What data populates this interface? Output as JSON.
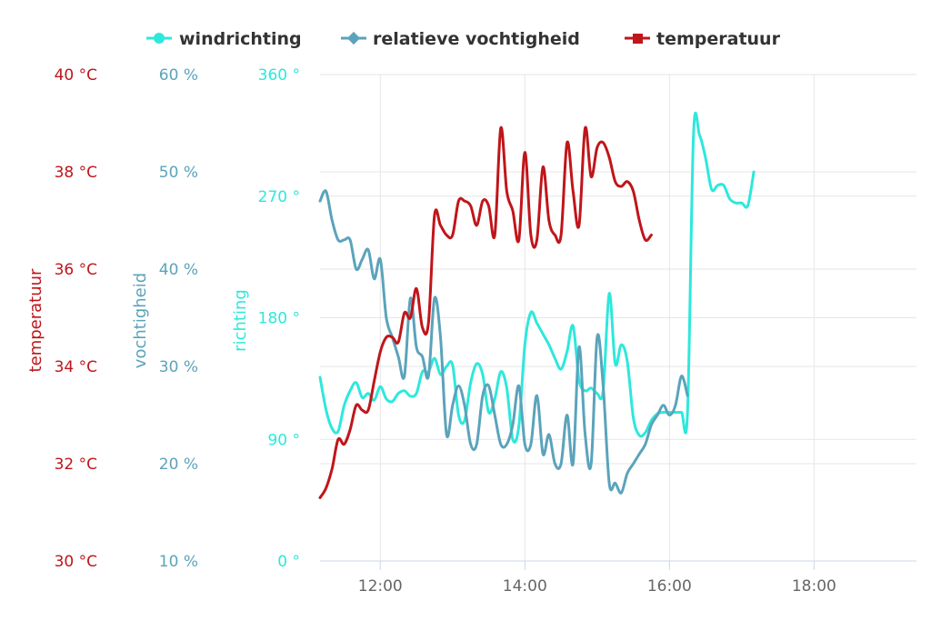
{
  "chart_data": {
    "type": "line",
    "title": "",
    "legend": {
      "placement": "top-center",
      "entries": [
        "windrichting",
        "relatieve vochtigheid",
        "temperatuur"
      ]
    },
    "x_axis": {
      "type": "time",
      "range": [
        "11:10",
        "19:25"
      ],
      "ticks": [
        "12:00",
        "14:00",
        "16:00",
        "18:00"
      ],
      "grid": true
    },
    "y_axes": [
      {
        "id": "temp",
        "title": "temperatuur",
        "color": "#c0151a",
        "range": [
          30,
          40
        ],
        "ticks": [
          "40 °C",
          "38 °C",
          "36 °C",
          "34 °C",
          "32 °C",
          "30 °C"
        ]
      },
      {
        "id": "hum",
        "title": "vochtigheid",
        "color": "#5ba3bb",
        "range": [
          10,
          60
        ],
        "ticks": [
          "60 %",
          "50 %",
          "40 %",
          "30 %",
          "20 %",
          "10 %"
        ]
      },
      {
        "id": "dir",
        "title": "richting",
        "color": "#2de8dc",
        "range": [
          0,
          360
        ],
        "ticks": [
          "360 °",
          "270 °",
          "180 °",
          "90 °",
          "0 °"
        ]
      }
    ],
    "series": [
      {
        "name": "windrichting",
        "axis": "dir",
        "color": "#2de8dc",
        "marker": "circle",
        "points": [
          [
            "11:10",
            136
          ],
          [
            "11:15",
            112
          ],
          [
            "11:20",
            98
          ],
          [
            "11:25",
            96
          ],
          [
            "11:30",
            115
          ],
          [
            "11:35",
            126
          ],
          [
            "11:40",
            132
          ],
          [
            "11:45",
            121
          ],
          [
            "11:50",
            124
          ],
          [
            "11:55",
            119
          ],
          [
            "12:00",
            129
          ],
          [
            "12:05",
            120
          ],
          [
            "12:10",
            118
          ],
          [
            "12:15",
            124
          ],
          [
            "12:20",
            126
          ],
          [
            "12:25",
            122
          ],
          [
            "12:30",
            124
          ],
          [
            "12:35",
            140
          ],
          [
            "12:40",
            140
          ],
          [
            "12:45",
            150
          ],
          [
            "12:50",
            138
          ],
          [
            "12:55",
            144
          ],
          [
            "13:00",
            145
          ],
          [
            "13:05",
            108
          ],
          [
            "13:10",
            104
          ],
          [
            "13:15",
            132
          ],
          [
            "13:20",
            146
          ],
          [
            "13:25",
            138
          ],
          [
            "13:30",
            110
          ],
          [
            "13:35",
            120
          ],
          [
            "13:40",
            140
          ],
          [
            "13:45",
            128
          ],
          [
            "13:50",
            90
          ],
          [
            "13:55",
            100
          ],
          [
            "14:00",
            160
          ],
          [
            "14:05",
            184
          ],
          [
            "14:10",
            176
          ],
          [
            "14:15",
            168
          ],
          [
            "14:20",
            160
          ],
          [
            "14:25",
            150
          ],
          [
            "14:30",
            142
          ],
          [
            "14:35",
            155
          ],
          [
            "14:40",
            174
          ],
          [
            "14:45",
            134
          ],
          [
            "14:50",
            126
          ],
          [
            "14:55",
            128
          ],
          [
            "15:00",
            124
          ],
          [
            "15:05",
            126
          ],
          [
            "15:10",
            198
          ],
          [
            "15:15",
            146
          ],
          [
            "15:20",
            160
          ],
          [
            "15:25",
            148
          ],
          [
            "15:30",
            106
          ],
          [
            "15:35",
            93
          ],
          [
            "15:40",
            95
          ],
          [
            "15:45",
            104
          ],
          [
            "15:50",
            109
          ],
          [
            "15:55",
            110
          ],
          [
            "16:00",
            110
          ],
          [
            "16:05",
            110
          ],
          [
            "16:10",
            110
          ],
          [
            "16:15",
            110
          ],
          [
            "16:20",
            316
          ],
          [
            "16:25",
            315
          ],
          [
            "16:30",
            298
          ],
          [
            "16:35",
            275
          ],
          [
            "16:40",
            278
          ],
          [
            "16:45",
            278
          ],
          [
            "16:50",
            268
          ],
          [
            "16:55",
            265
          ],
          [
            "17:00",
            265
          ],
          [
            "17:05",
            263
          ],
          [
            "17:10",
            288
          ]
        ]
      },
      {
        "name": "relatieve vochtigheid",
        "axis": "hum",
        "color": "#5ba3bb",
        "marker": "diamond",
        "points": [
          [
            "11:10",
            47
          ],
          [
            "11:15",
            48
          ],
          [
            "11:20",
            45
          ],
          [
            "11:25",
            43
          ],
          [
            "11:30",
            43
          ],
          [
            "11:35",
            43
          ],
          [
            "11:40",
            40
          ],
          [
            "11:45",
            41
          ],
          [
            "11:50",
            42
          ],
          [
            "11:55",
            39
          ],
          [
            "12:00",
            41
          ],
          [
            "12:05",
            35
          ],
          [
            "12:10",
            33
          ],
          [
            "12:15",
            31
          ],
          [
            "12:20",
            29
          ],
          [
            "12:25",
            37
          ],
          [
            "12:30",
            32
          ],
          [
            "12:35",
            31
          ],
          [
            "12:40",
            29
          ],
          [
            "12:45",
            37
          ],
          [
            "12:50",
            33
          ],
          [
            "12:55",
            23
          ],
          [
            "13:00",
            26
          ],
          [
            "13:05",
            28
          ],
          [
            "13:10",
            26
          ],
          [
            "13:15",
            22
          ],
          [
            "13:20",
            22
          ],
          [
            "13:25",
            27
          ],
          [
            "13:30",
            28
          ],
          [
            "13:35",
            25
          ],
          [
            "13:40",
            22
          ],
          [
            "13:45",
            22
          ],
          [
            "13:50",
            24
          ],
          [
            "13:55",
            28
          ],
          [
            "14:00",
            22
          ],
          [
            "14:05",
            22
          ],
          [
            "14:10",
            27
          ],
          [
            "14:15",
            21
          ],
          [
            "14:20",
            23
          ],
          [
            "14:25",
            20
          ],
          [
            "14:30",
            20
          ],
          [
            "14:35",
            25
          ],
          [
            "14:40",
            20
          ],
          [
            "14:45",
            32
          ],
          [
            "14:50",
            23
          ],
          [
            "14:55",
            20
          ],
          [
            "15:00",
            33
          ],
          [
            "15:05",
            28
          ],
          [
            "15:10",
            18
          ],
          [
            "15:15",
            18
          ],
          [
            "15:20",
            17
          ],
          [
            "15:25",
            19
          ],
          [
            "15:30",
            20
          ],
          [
            "15:35",
            21
          ],
          [
            "15:40",
            22
          ],
          [
            "15:45",
            24
          ],
          [
            "15:50",
            25
          ],
          [
            "15:55",
            26
          ],
          [
            "16:00",
            25
          ],
          [
            "16:05",
            26
          ],
          [
            "16:10",
            29
          ],
          [
            "16:15",
            27
          ]
        ]
      },
      {
        "name": "temperatuur",
        "axis": "temp",
        "color": "#c0151a",
        "marker": "square",
        "points": [
          [
            "11:10",
            31.3
          ],
          [
            "11:15",
            31.5
          ],
          [
            "11:20",
            31.9
          ],
          [
            "11:25",
            32.5
          ],
          [
            "11:30",
            32.4
          ],
          [
            "11:35",
            32.7
          ],
          [
            "11:40",
            33.2
          ],
          [
            "11:45",
            33.1
          ],
          [
            "11:50",
            33.1
          ],
          [
            "11:55",
            33.7
          ],
          [
            "12:00",
            34.3
          ],
          [
            "12:05",
            34.6
          ],
          [
            "12:10",
            34.6
          ],
          [
            "12:15",
            34.5
          ],
          [
            "12:20",
            35.1
          ],
          [
            "12:25",
            35.0
          ],
          [
            "12:30",
            35.6
          ],
          [
            "12:35",
            34.8
          ],
          [
            "12:40",
            34.9
          ],
          [
            "12:45",
            37.1
          ],
          [
            "12:50",
            36.9
          ],
          [
            "12:55",
            36.7
          ],
          [
            "13:00",
            36.7
          ],
          [
            "13:05",
            37.4
          ],
          [
            "13:10",
            37.4
          ],
          [
            "13:15",
            37.3
          ],
          [
            "13:20",
            36.9
          ],
          [
            "13:25",
            37.4
          ],
          [
            "13:30",
            37.3
          ],
          [
            "13:35",
            36.7
          ],
          [
            "13:40",
            38.9
          ],
          [
            "13:45",
            37.6
          ],
          [
            "13:50",
            37.2
          ],
          [
            "13:55",
            36.6
          ],
          [
            "14:00",
            38.4
          ],
          [
            "14:05",
            36.7
          ],
          [
            "14:10",
            36.6
          ],
          [
            "14:15",
            38.1
          ],
          [
            "14:20",
            37.0
          ],
          [
            "14:25",
            36.7
          ],
          [
            "14:30",
            36.7
          ],
          [
            "14:35",
            38.6
          ],
          [
            "14:40",
            37.6
          ],
          [
            "14:45",
            36.9
          ],
          [
            "14:50",
            38.9
          ],
          [
            "14:55",
            37.9
          ],
          [
            "15:00",
            38.5
          ],
          [
            "15:05",
            38.6
          ],
          [
            "15:10",
            38.3
          ],
          [
            "15:15",
            37.8
          ],
          [
            "15:20",
            37.7
          ],
          [
            "15:25",
            37.8
          ],
          [
            "15:30",
            37.6
          ],
          [
            "15:35",
            37.0
          ],
          [
            "15:40",
            36.6
          ],
          [
            "15:45",
            36.7
          ]
        ]
      }
    ]
  }
}
